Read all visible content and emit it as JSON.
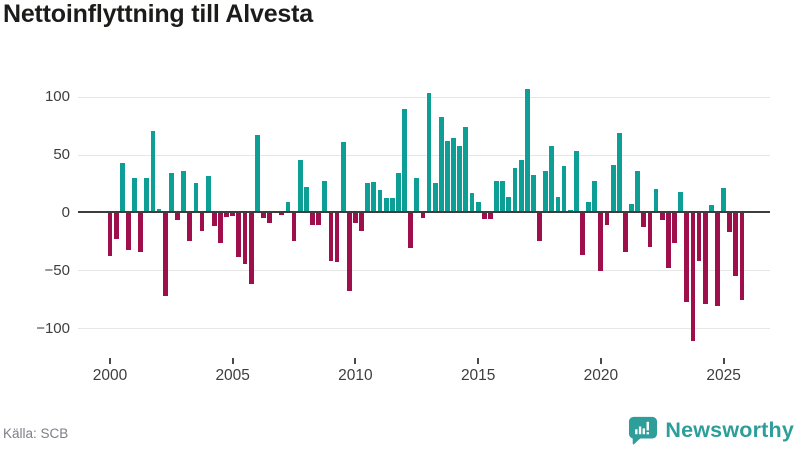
{
  "header": {
    "title": "Nettoinflyttning till Alvesta"
  },
  "footer": {
    "source": "Källa: SCB",
    "brand": "Newsworthy",
    "brand_icon": "newsworthy-speech-bubble-bar-chart-icon"
  },
  "chart_data": {
    "type": "bar",
    "title": "Nettoinflyttning till Alvesta",
    "x_start": "2000Q1",
    "x_interval": "quarterly",
    "values": [
      -38,
      -23,
      43,
      -33,
      30,
      -34,
      30,
      70,
      3,
      -72,
      34,
      -7,
      36,
      -25,
      25,
      -16,
      31,
      -12,
      -27,
      -4,
      -3,
      -39,
      -45,
      -62,
      67,
      -5,
      -9,
      0,
      -2,
      9,
      -25,
      45,
      22,
      -11,
      -11,
      27,
      -42,
      -43,
      61,
      -68,
      -9,
      -16,
      25,
      26,
      19,
      12,
      12,
      34,
      89,
      -31,
      30,
      -5,
      103,
      25,
      82,
      62,
      64,
      57,
      74,
      17,
      9,
      -6,
      -6,
      27,
      27,
      13,
      38,
      45,
      107,
      32,
      -25,
      36,
      57,
      13,
      40,
      2,
      53,
      -37,
      9,
      27,
      -51,
      -11,
      41,
      69,
      -34,
      7,
      36,
      -13,
      -30,
      20,
      -7,
      -48,
      -27,
      18,
      -78,
      -111,
      -42,
      -79,
      6,
      -81,
      21,
      -17,
      -55,
      -76
    ],
    "xtick_years": [
      2000,
      2005,
      2010,
      2015,
      2020,
      2025
    ],
    "xtick_labels": [
      "2000",
      "2005",
      "2010",
      "2015",
      "2020",
      "2025"
    ],
    "ytick_values": [
      100,
      50,
      0,
      -50,
      -100
    ],
    "ytick_labels": [
      "100",
      "50",
      "0",
      "−50",
      "−100"
    ],
    "ylim": [
      -115,
      110
    ],
    "grid": true,
    "legend": false,
    "colors": {
      "positive": "#0d9e96",
      "negative": "#9e0f4b",
      "zero_axis": "#3d3d3d",
      "grid": "#e7e7e7",
      "tick_text": "#3e3e3e",
      "brand_teal": "#2d9e99"
    }
  }
}
